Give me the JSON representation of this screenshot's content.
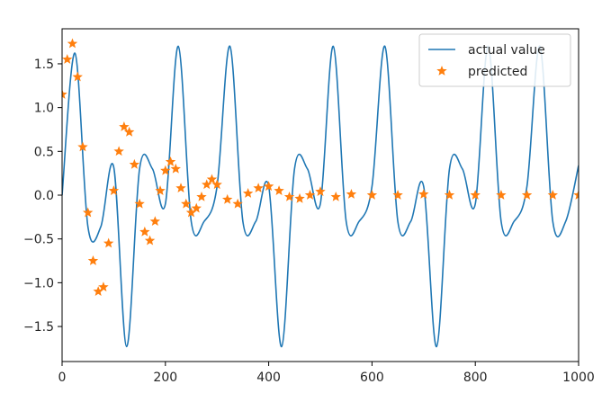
{
  "chart_data": {
    "type": "line",
    "title": "",
    "xlabel": "",
    "ylabel": "",
    "xlim": [
      0,
      1000
    ],
    "ylim": [
      -1.9,
      1.9
    ],
    "x_ticks": [
      0,
      200,
      400,
      600,
      800,
      1000
    ],
    "x_tick_labels": [
      "0",
      "200",
      "400",
      "600",
      "800",
      "1000"
    ],
    "y_ticks": [
      1.5,
      1.0,
      0.5,
      0.0,
      -0.5,
      -1.0,
      -1.5
    ],
    "y_tick_labels": [
      "1.5",
      "1.0",
      "0.5",
      "0.0",
      "−0.5",
      "−1.0",
      "−1.5"
    ],
    "grid": false,
    "legend_position": "top-right",
    "series": [
      {
        "name": "actual value",
        "style": "line",
        "color": "#1f77b4",
        "x": [
          0,
          25,
          50,
          75,
          100,
          125,
          150,
          175,
          200,
          225,
          250,
          275,
          300,
          325,
          350,
          375,
          400,
          425,
          450,
          475,
          500,
          525,
          550,
          575,
          600,
          625,
          650,
          675,
          700,
          725,
          750,
          775,
          800,
          825,
          850,
          875,
          900,
          925,
          950,
          975,
          1000
        ],
        "y": [
          0.0,
          1.62,
          -0.36,
          -0.36,
          0.32,
          -1.73,
          0.3,
          0.3,
          -0.1,
          1.7,
          -0.3,
          -0.3,
          0.1,
          1.7,
          -0.3,
          -0.3,
          0.1,
          -1.73,
          0.3,
          0.3,
          -0.1,
          1.7,
          -0.3,
          -0.3,
          0.1,
          1.7,
          -0.3,
          -0.3,
          0.1,
          -1.73,
          0.3,
          0.3,
          -0.1,
          1.7,
          -0.3,
          -0.3,
          0.1,
          1.7,
          -0.3,
          -0.3,
          0.34
        ]
      },
      {
        "name": "predicted",
        "style": "markers",
        "marker": "star",
        "color": "#ff7f0e",
        "x": [
          0,
          10,
          20,
          30,
          40,
          50,
          60,
          70,
          80,
          90,
          100,
          110,
          120,
          130,
          140,
          150,
          160,
          170,
          180,
          190,
          200,
          210,
          220,
          230,
          240,
          250,
          260,
          270,
          280,
          290,
          300,
          320,
          340,
          360,
          380,
          400,
          420,
          440,
          460,
          480,
          500,
          530,
          560,
          600,
          650,
          700,
          750,
          800,
          850,
          900,
          950,
          1000
        ],
        "y": [
          1.15,
          1.55,
          1.73,
          1.35,
          0.55,
          -0.2,
          -0.75,
          -1.1,
          -1.05,
          -0.55,
          0.05,
          0.5,
          0.78,
          0.72,
          0.35,
          -0.1,
          -0.42,
          -0.52,
          -0.3,
          0.05,
          0.28,
          0.38,
          0.3,
          0.08,
          -0.1,
          -0.2,
          -0.15,
          -0.02,
          0.12,
          0.18,
          0.12,
          -0.05,
          -0.1,
          0.02,
          0.08,
          0.1,
          0.05,
          -0.02,
          -0.04,
          0.0,
          0.04,
          -0.02,
          0.01,
          0.0,
          0.0,
          0.01,
          0.0,
          0.0,
          0.0,
          0.0,
          0.0,
          0.0
        ]
      }
    ]
  }
}
